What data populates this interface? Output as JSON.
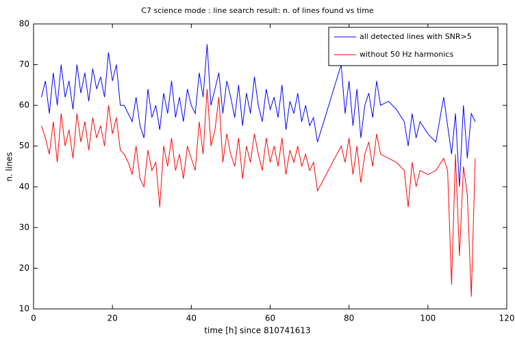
{
  "chart_data": {
    "type": "line",
    "title": "C7 science mode : line search result: n. of lines found vs time",
    "xlabel": "time [h] since 810741613",
    "ylabel": "n. lines",
    "x": [
      2,
      3,
      4,
      5,
      6,
      7,
      8,
      9,
      10,
      11,
      12,
      13,
      14,
      15,
      16,
      17,
      18,
      19,
      20,
      21,
      22,
      23,
      24,
      25,
      26,
      27,
      28,
      29,
      30,
      31,
      32,
      33,
      34,
      35,
      36,
      37,
      38,
      39,
      40,
      41,
      42,
      43,
      44,
      45,
      46,
      47,
      48,
      49,
      50,
      51,
      52,
      53,
      54,
      55,
      56,
      57,
      58,
      59,
      60,
      61,
      62,
      63,
      64,
      65,
      66,
      67,
      68,
      69,
      70,
      71,
      72,
      78,
      79,
      80,
      81,
      82,
      83,
      84,
      85,
      86,
      87,
      88,
      90,
      92,
      94,
      95,
      96,
      97,
      98,
      100,
      102,
      104,
      105,
      106,
      107,
      108,
      109,
      110,
      111,
      112
    ],
    "series": [
      {
        "name": "all detected lines with SNR>5",
        "color": "#0000ff",
        "values": [
          62,
          66,
          58,
          68,
          60,
          70,
          62,
          66,
          59,
          70,
          63,
          68,
          61,
          69,
          64,
          67,
          62,
          73,
          66,
          70,
          60,
          60,
          58,
          56,
          62,
          55,
          52,
          64,
          57,
          60,
          54,
          63,
          58,
          66,
          57,
          62,
          56,
          64,
          60,
          58,
          68,
          62,
          75,
          60,
          64,
          68,
          58,
          66,
          62,
          57,
          65,
          55,
          63,
          58,
          67,
          60,
          56,
          64,
          59,
          62,
          57,
          65,
          54,
          61,
          58,
          63,
          56,
          60,
          55,
          57,
          51,
          70,
          58,
          66,
          55,
          64,
          52,
          60,
          63,
          57,
          66,
          60,
          61,
          59,
          56,
          50,
          58,
          52,
          56,
          53,
          51,
          62,
          55,
          48,
          58,
          40,
          60,
          47,
          58,
          56
        ]
      },
      {
        "name": "without 50 Hz harmonics",
        "color": "#ff0000",
        "values": [
          55,
          52,
          48,
          56,
          46,
          58,
          50,
          54,
          47,
          58,
          51,
          56,
          49,
          57,
          52,
          55,
          50,
          60,
          53,
          57,
          49,
          48,
          46,
          43,
          50,
          42,
          40,
          49,
          44,
          46,
          35,
          50,
          45,
          52,
          44,
          48,
          42,
          50,
          47,
          44,
          56,
          48,
          64,
          50,
          54,
          62,
          46,
          53,
          48,
          45,
          52,
          42,
          50,
          46,
          53,
          48,
          44,
          52,
          46,
          50,
          45,
          52,
          43,
          49,
          46,
          50,
          45,
          48,
          44,
          46,
          39,
          50,
          46,
          52,
          43,
          50,
          41,
          48,
          51,
          45,
          53,
          48,
          47,
          46,
          44,
          35,
          46,
          40,
          44,
          43,
          44,
          47,
          44,
          16,
          48,
          23,
          45,
          38,
          13,
          47
        ]
      }
    ],
    "xlim": [
      0,
      120
    ],
    "xticks": [
      0,
      20,
      40,
      60,
      80,
      100,
      120
    ],
    "ylim": [
      10,
      80
    ],
    "yticks": [
      10,
      20,
      30,
      40,
      50,
      60,
      70,
      80
    ],
    "grid": false,
    "legend": "upper right"
  }
}
